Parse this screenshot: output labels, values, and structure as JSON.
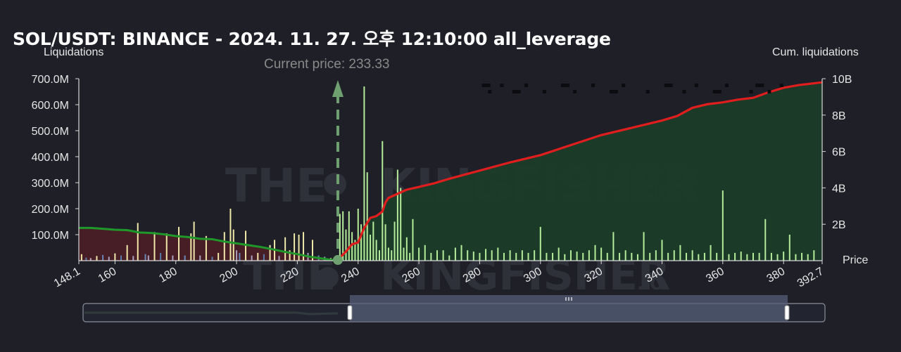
{
  "chart_data": {
    "type": "bar",
    "title": "SOL/USDT: BINANCE - 2024. 11. 27. 오후 12:10:00 all_leverage",
    "ylabel": "Liquidations",
    "y2label": "Cum. liquidations",
    "xlabel": "Price",
    "current_price_label": "Current price: 233.33",
    "current_price": 233.33,
    "xlim": [
      148.1,
      392.7
    ],
    "ylim": [
      0,
      700000000
    ],
    "y2lim": [
      0,
      10000000000
    ],
    "x_ticks": [
      "148.1",
      "160",
      "180",
      "200",
      "220",
      "240",
      "260",
      "280",
      "300",
      "320",
      "340",
      "360",
      "380",
      "392.7"
    ],
    "x_tick_values": [
      148.1,
      160,
      180,
      200,
      220,
      240,
      260,
      280,
      300,
      320,
      340,
      360,
      380,
      392.7
    ],
    "y_ticks": [
      "100.0M",
      "200.0M",
      "300.0M",
      "400.0M",
      "500.0M",
      "600.0M",
      "700.0M"
    ],
    "y_tick_values": [
      100000000,
      200000000,
      300000000,
      400000000,
      500000000,
      600000000,
      700000000
    ],
    "y2_ticks": [
      "2B",
      "4B",
      "6B",
      "8B",
      "10B"
    ],
    "y2_tick_values": [
      2000000000,
      4000000000,
      6000000000,
      8000000000,
      10000000000
    ],
    "bars_long": {
      "x": [
        149,
        150.5,
        152,
        154,
        156,
        158,
        160,
        162,
        164,
        166,
        167.5,
        170,
        171,
        173,
        175,
        177,
        179,
        181,
        183,
        185,
        186,
        188,
        190,
        192,
        194,
        196,
        198,
        199,
        200,
        201,
        203,
        205,
        207,
        209,
        211,
        212.5,
        214,
        216,
        217.5,
        219,
        220.5,
        222,
        223.5,
        225,
        227,
        229,
        231
      ],
      "values": [
        25,
        12,
        10,
        18,
        22,
        15,
        28,
        20,
        60,
        18,
        145,
        25,
        20,
        110,
        30,
        105,
        20,
        130,
        20,
        105,
        150,
        20,
        95,
        15,
        30,
        110,
        200,
        120,
        40,
        30,
        115,
        20,
        30,
        25,
        60,
        80,
        18,
        90,
        40,
        105,
        100,
        110,
        30,
        80,
        20,
        15,
        10
      ],
      "colors": [
        "#f0e8a8",
        "#5a7aaa",
        "#c0a0b8",
        "#f0e8a8",
        "#6a88b8",
        "#a8a0c0",
        "#f0e8a8",
        "#5a7aaa",
        "#f0e8a8",
        "#a8a0c0",
        "#f0e8a8",
        "#6a88b8",
        "#a8a0c0",
        "#f0e8a8",
        "#5a7aaa",
        "#f0e8a8",
        "#a8a0c0",
        "#f0e8a8",
        "#6a88b8",
        "#f0e8a8",
        "#f0e8a8",
        "#a8a0c0",
        "#f0e8a8",
        "#5a7aaa",
        "#f0e8a8",
        "#f0e8a8",
        "#f0e8a8",
        "#f0e8a8",
        "#a8a0c0",
        "#6a88b8",
        "#f0e8a8",
        "#a8a0c0",
        "#f0e8a8",
        "#5a7aaa",
        "#f0e8a8",
        "#f0e8a8",
        "#a8a0c0",
        "#f0e8a8",
        "#f0e8a8",
        "#f0e8a8",
        "#f0e8a8",
        "#f0e8a8",
        "#a8a0c0",
        "#f0e8a8",
        "#6a88b8",
        "#a8a0c0",
        "#f0e8a8"
      ]
    },
    "bars_short": {
      "x": [
        234,
        235,
        236,
        237,
        238,
        239,
        240,
        241,
        242,
        243,
        244,
        245,
        246,
        247,
        248,
        249,
        250,
        251,
        252,
        253,
        254,
        255,
        256,
        257,
        258,
        260,
        262,
        264,
        266,
        268,
        270,
        272,
        274,
        276,
        278,
        280,
        282,
        284,
        286,
        288,
        290,
        292,
        294,
        296,
        298,
        300,
        302,
        304,
        306,
        308,
        310,
        312,
        314,
        316,
        318,
        320,
        322,
        324,
        326,
        328,
        330,
        332,
        334,
        336,
        338,
        340,
        342,
        344,
        346,
        348,
        350,
        352,
        354,
        356,
        358,
        360,
        362,
        364,
        366,
        368,
        370,
        372,
        374,
        376,
        378,
        380,
        382,
        384,
        386,
        388,
        390
      ],
      "values": [
        180,
        190,
        120,
        190,
        110,
        80,
        200,
        140,
        670,
        340,
        100,
        150,
        80,
        40,
        460,
        140,
        50,
        40,
        150,
        350,
        280,
        50,
        90,
        30,
        160,
        50,
        60,
        30,
        40,
        40,
        20,
        50,
        60,
        40,
        35,
        30,
        45,
        40,
        50,
        30,
        40,
        30,
        40,
        30,
        40,
        130,
        30,
        30,
        50,
        25,
        40,
        35,
        30,
        40,
        60,
        50,
        30,
        110,
        30,
        40,
        30,
        25,
        110,
        30,
        40,
        80,
        30,
        40,
        60,
        30,
        40,
        25,
        30,
        60,
        30,
        270,
        25,
        30,
        35,
        25,
        30,
        30,
        160,
        30,
        25,
        35,
        100,
        25,
        30,
        25,
        40
      ],
      "color": "#b4ec9a"
    },
    "cum_long": {
      "x": [
        148.1,
        152,
        156,
        160,
        164,
        168,
        172,
        176,
        180,
        184,
        188,
        192,
        196,
        200,
        204,
        208,
        212,
        216,
        220,
        224,
        228,
        231,
        233.33
      ],
      "values": [
        1.8,
        1.8,
        1.75,
        1.7,
        1.68,
        1.55,
        1.52,
        1.45,
        1.35,
        1.3,
        1.2,
        1.18,
        1.05,
        0.95,
        0.85,
        0.75,
        0.62,
        0.48,
        0.36,
        0.22,
        0.12,
        0.05,
        0.0
      ],
      "color": "#1f9a2a"
    },
    "cum_short": {
      "x": [
        233.33,
        236,
        238,
        240,
        242,
        244,
        246,
        248,
        249,
        250,
        252,
        254,
        256,
        260,
        265,
        270,
        280,
        290,
        300,
        310,
        320,
        330,
        340,
        345,
        350,
        355,
        360,
        365,
        370,
        375,
        380,
        385,
        392.7
      ],
      "values": [
        0.05,
        0.5,
        0.9,
        1.0,
        1.8,
        2.35,
        2.45,
        2.7,
        3.2,
        3.45,
        3.6,
        3.75,
        3.9,
        4.05,
        4.25,
        4.5,
        4.95,
        5.4,
        5.8,
        6.35,
        6.9,
        7.3,
        7.7,
        7.95,
        8.4,
        8.6,
        8.7,
        8.85,
        8.95,
        9.25,
        9.5,
        9.65,
        9.8
      ],
      "color": "#e01e1e",
      "unit": "B"
    },
    "colors": {
      "background": "#1e1f27",
      "long_fill": "#4a1d26",
      "short_fill": "#1b3d28",
      "current_price_marker": "#6fa06f",
      "slider_window": "#565f78"
    },
    "watermark": "THE KINGFISHER.IO"
  }
}
